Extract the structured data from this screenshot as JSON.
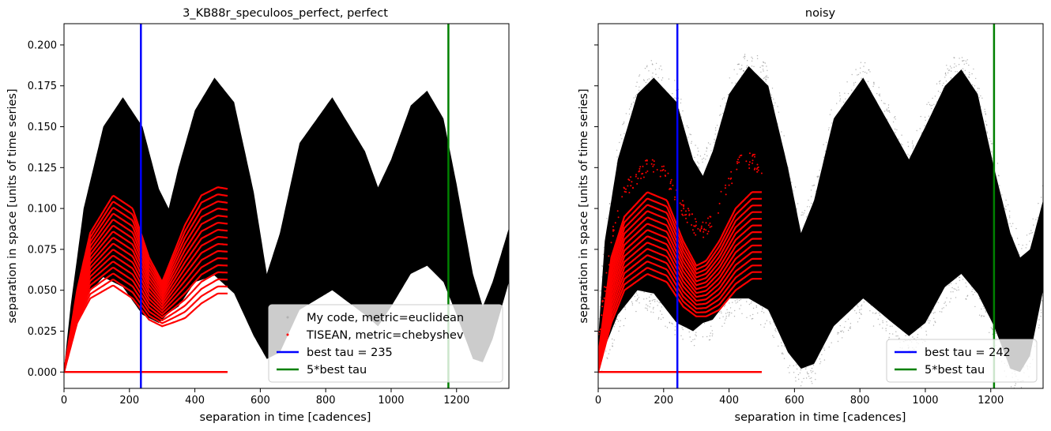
{
  "colors": {
    "scatter_black": "#000000",
    "scatter_red": "#ff0000",
    "best_tau_line": "#0000ff",
    "five_best_tau_line": "#008000"
  },
  "chart_data": [
    {
      "type": "scatter",
      "title": "3_KB88r_speculoos_perfect, perfect",
      "xlabel": "separation in time [cadences]",
      "ylabel": "separation in space [units of time series]",
      "xlim": [
        0,
        1360
      ],
      "ylim": [
        -0.01,
        0.213
      ],
      "xticks": [
        "0",
        "200",
        "400",
        "600",
        "800",
        "1000",
        "1200"
      ],
      "yticks": [
        "0.000",
        "0.025",
        "0.050",
        "0.075",
        "0.100",
        "0.125",
        "0.150",
        "0.175",
        "0.200"
      ],
      "grid": false,
      "legend_position": "lower-right",
      "black_band_envelope": {
        "x": [
          0,
          20,
          60,
          120,
          180,
          240,
          290,
          320,
          350,
          400,
          460,
          520,
          580,
          620,
          660,
          720,
          820,
          920,
          960,
          1000,
          1060,
          1110,
          1160,
          1200,
          1250,
          1280,
          1310,
          1360
        ],
        "upper": [
          0.002,
          0.04,
          0.1,
          0.15,
          0.168,
          0.15,
          0.112,
          0.1,
          0.125,
          0.16,
          0.18,
          0.165,
          0.11,
          0.06,
          0.085,
          0.14,
          0.168,
          0.135,
          0.113,
          0.13,
          0.163,
          0.172,
          0.155,
          0.115,
          0.06,
          0.04,
          0.055,
          0.088
        ],
        "lower": [
          0.0,
          0.02,
          0.045,
          0.058,
          0.052,
          0.035,
          0.03,
          0.036,
          0.04,
          0.055,
          0.059,
          0.048,
          0.022,
          0.008,
          0.012,
          0.038,
          0.05,
          0.035,
          0.028,
          0.04,
          0.06,
          0.065,
          0.055,
          0.035,
          0.008,
          0.006,
          0.02,
          0.055
        ]
      },
      "red_curves": {
        "x_range": [
          0,
          500
        ],
        "count": 16,
        "shape": {
          "x": [
            0,
            40,
            80,
            150,
            210,
            260,
            300,
            330,
            370,
            420,
            470,
            500
          ],
          "top": [
            0.0,
            0.05,
            0.085,
            0.108,
            0.1,
            0.07,
            0.055,
            0.07,
            0.09,
            0.108,
            0.113,
            0.112
          ],
          "bottom": [
            0.0,
            0.03,
            0.045,
            0.053,
            0.045,
            0.032,
            0.028,
            0.03,
            0.033,
            0.042,
            0.048,
            0.048
          ]
        },
        "zero_line": 0.0
      },
      "best_tau": 235,
      "five_best_tau": 1175,
      "legend": [
        {
          "label": "My code, metric=euclidean",
          "marker": "dot",
          "color": "#b0b0b0"
        },
        {
          "label": "TISEAN, metric=chebyshev",
          "marker": "dot",
          "color": "#ff0000"
        },
        {
          "label": "best tau = 235",
          "marker": "line",
          "color": "#0000ff"
        },
        {
          "label": "5*best tau",
          "marker": "line",
          "color": "#008000"
        }
      ]
    },
    {
      "type": "scatter",
      "title": "noisy",
      "xlabel": "separation in time [cadences]",
      "ylabel": "separation in space [units of time series]",
      "xlim": [
        0,
        1360
      ],
      "ylim": [
        -0.01,
        0.213
      ],
      "xticks": [
        "0",
        "200",
        "400",
        "600",
        "800",
        "1000",
        "1200"
      ],
      "yticks": [
        "",
        "",
        "",
        "",
        "",
        "",
        "",
        "",
        ""
      ],
      "grid": false,
      "legend_position": "lower-right",
      "black_band_envelope": {
        "x": [
          0,
          20,
          60,
          120,
          170,
          240,
          290,
          320,
          350,
          400,
          460,
          520,
          580,
          620,
          660,
          720,
          810,
          900,
          950,
          1000,
          1060,
          1110,
          1160,
          1210,
          1260,
          1290,
          1320,
          1360
        ],
        "upper": [
          0.02,
          0.08,
          0.13,
          0.17,
          0.18,
          0.165,
          0.13,
          0.12,
          0.135,
          0.17,
          0.187,
          0.175,
          0.125,
          0.085,
          0.105,
          0.155,
          0.18,
          0.148,
          0.13,
          0.15,
          0.175,
          0.185,
          0.17,
          0.125,
          0.085,
          0.07,
          0.075,
          0.105
        ],
        "lower": [
          0.005,
          0.015,
          0.035,
          0.05,
          0.048,
          0.03,
          0.025,
          0.03,
          0.032,
          0.045,
          0.045,
          0.038,
          0.012,
          0.002,
          0.005,
          0.028,
          0.045,
          0.03,
          0.022,
          0.03,
          0.052,
          0.06,
          0.048,
          0.028,
          0.002,
          0.0,
          0.01,
          0.05
        ]
      },
      "red_curves": {
        "x_range": [
          0,
          500
        ],
        "count": 14,
        "shape": {
          "x": [
            0,
            40,
            80,
            150,
            210,
            260,
            300,
            330,
            370,
            420,
            470,
            500
          ],
          "top": [
            0.01,
            0.07,
            0.095,
            0.11,
            0.105,
            0.08,
            0.065,
            0.068,
            0.08,
            0.1,
            0.11,
            0.11
          ],
          "bottom": [
            0.0,
            0.03,
            0.05,
            0.06,
            0.055,
            0.04,
            0.034,
            0.034,
            0.038,
            0.05,
            0.057,
            0.057
          ]
        },
        "outlier_curve": {
          "x": [
            0,
            40,
            80,
            160,
            200,
            260,
            310,
            340,
            380,
            430,
            470,
            500
          ],
          "y": [
            0.02,
            0.08,
            0.11,
            0.128,
            0.122,
            0.1,
            0.085,
            0.09,
            0.108,
            0.128,
            0.13,
            0.125
          ]
        },
        "zero_line": 0.0
      },
      "best_tau": 242,
      "five_best_tau": 1210,
      "legend": [
        {
          "label": "best tau = 242",
          "marker": "line",
          "color": "#0000ff"
        },
        {
          "label": "5*best tau",
          "marker": "line",
          "color": "#008000"
        }
      ]
    }
  ]
}
